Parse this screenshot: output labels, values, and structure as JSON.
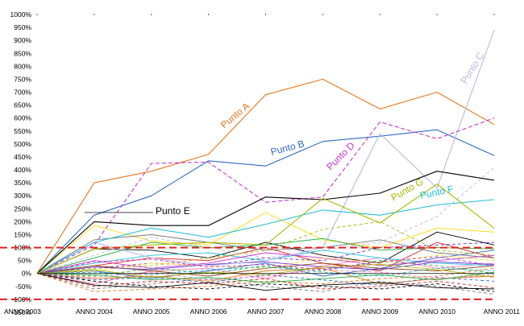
{
  "chart_data": {
    "type": "line",
    "title": "",
    "xlabel": "",
    "ylabel": "",
    "categories": [
      "ANNO 2003",
      "ANNO 2004",
      "ANNO 2005",
      "ANNO 2006",
      "ANNO 2007",
      "ANNO 2008",
      "ANNO 2009",
      "ANNO 2010",
      "ANNO 2011"
    ],
    "ylim": [
      -150,
      1000
    ],
    "yticks": [
      -150,
      -100,
      -50,
      0,
      50,
      100,
      150,
      200,
      250,
      300,
      350,
      400,
      450,
      500,
      550,
      600,
      650,
      700,
      750,
      800,
      850,
      900,
      950,
      1000
    ],
    "ytick_labels": [
      "-150%",
      "-100%",
      "-50%",
      "0%",
      "50%",
      "100%",
      "150%",
      "200%",
      "250%",
      "300%",
      "350%",
      "400%",
      "450%",
      "500%",
      "550%",
      "600%",
      "650%",
      "700%",
      "750%",
      "800%",
      "850%",
      "900%",
      "950%",
      "1000%"
    ],
    "reference_lines": [
      {
        "y": 100,
        "color": "#e32020",
        "dash": true
      },
      {
        "y": -100,
        "color": "#e32020",
        "dash": true
      }
    ],
    "highlighted_series": [
      {
        "label": "Punto A",
        "color": "#e8761a",
        "dashed": false,
        "values": [
          0,
          350,
          395,
          460,
          690,
          750,
          635,
          700,
          575
        ]
      },
      {
        "label": "Punto B",
        "color": "#2f6bc4",
        "dashed": false,
        "values": [
          0,
          225,
          300,
          435,
          415,
          510,
          530,
          555,
          455
        ]
      },
      {
        "label": "Punto C",
        "color": "#b8b8e8",
        "dashed": false,
        "values": [
          0,
          120,
          60,
          30,
          50,
          100,
          540,
          330,
          940
        ]
      },
      {
        "label": "Punto D",
        "color": "#cc33cc",
        "dashed": true,
        "values": [
          0,
          110,
          425,
          430,
          275,
          295,
          585,
          520,
          600
        ]
      },
      {
        "label": "Punto E",
        "color": "#000000",
        "dashed": false,
        "values": [
          0,
          200,
          185,
          185,
          295,
          285,
          310,
          395,
          360
        ]
      },
      {
        "label": "Punto F",
        "color": "#22c0d8",
        "dashed": false,
        "values": [
          0,
          120,
          175,
          140,
          190,
          245,
          225,
          265,
          285
        ]
      },
      {
        "label": "Punto G",
        "color": "#a8b800",
        "dashed": false,
        "values": [
          0,
          95,
          110,
          120,
          110,
          290,
          195,
          345,
          175
        ]
      }
    ],
    "background_series": [
      {
        "color": "#ffd800",
        "dashed": false,
        "values": [
          0,
          185,
          125,
          110,
          235,
          130,
          100,
          175,
          160
        ]
      },
      {
        "color": "#000000",
        "dashed": false,
        "values": [
          0,
          95,
          90,
          60,
          120,
          70,
          40,
          160,
          110
        ]
      },
      {
        "color": "#22aa44",
        "dashed": false,
        "values": [
          0,
          60,
          120,
          100,
          110,
          135,
          90,
          100,
          95
        ]
      },
      {
        "color": "#e32020",
        "dashed": false,
        "values": [
          0,
          30,
          60,
          50,
          100,
          40,
          10,
          120,
          60
        ]
      },
      {
        "color": "#6633cc",
        "dashed": true,
        "values": [
          0,
          20,
          40,
          30,
          60,
          50,
          100,
          110,
          120
        ]
      },
      {
        "color": "#ff7ab8",
        "dashed": false,
        "values": [
          0,
          -40,
          10,
          20,
          -20,
          30,
          60,
          20,
          40
        ]
      },
      {
        "color": "#b8b8e8",
        "dashed": true,
        "values": [
          0,
          70,
          140,
          100,
          60,
          90,
          120,
          220,
          410
        ]
      },
      {
        "color": "#777777",
        "dashed": true,
        "values": [
          0,
          -60,
          -40,
          -20,
          -50,
          -70,
          -30,
          -50,
          -80
        ]
      },
      {
        "color": "#22c0d8",
        "dashed": false,
        "values": [
          0,
          40,
          70,
          80,
          50,
          90,
          60,
          40,
          30
        ]
      },
      {
        "color": "#2f6bc4",
        "dashed": false,
        "values": [
          0,
          10,
          -20,
          10,
          40,
          -10,
          20,
          60,
          90
        ]
      },
      {
        "color": "#a8b800",
        "dashed": true,
        "values": [
          0,
          20,
          30,
          60,
          90,
          170,
          200,
          90,
          70
        ]
      },
      {
        "color": "#e8761a",
        "dashed": false,
        "values": [
          0,
          -20,
          -10,
          -30,
          10,
          20,
          -40,
          -20,
          -10
        ]
      },
      {
        "color": "#000000",
        "dashed": true,
        "values": [
          0,
          -30,
          -50,
          -60,
          -40,
          -50,
          -60,
          -40,
          -70
        ]
      },
      {
        "color": "#cc33cc",
        "dashed": false,
        "values": [
          0,
          50,
          20,
          40,
          80,
          60,
          30,
          50,
          70
        ]
      },
      {
        "color": "#22aa44",
        "dashed": true,
        "values": [
          0,
          -10,
          20,
          0,
          30,
          10,
          50,
          30,
          0
        ]
      },
      {
        "color": "#8b4513",
        "dashed": false,
        "values": [
          0,
          30,
          10,
          -10,
          20,
          40,
          20,
          10,
          30
        ]
      },
      {
        "color": "#e32020",
        "dashed": true,
        "values": [
          0,
          -50,
          -30,
          -40,
          -20,
          -60,
          -50,
          -30,
          -55
        ]
      },
      {
        "color": "#ffd800",
        "dashed": true,
        "values": [
          0,
          10,
          40,
          30,
          20,
          60,
          40,
          70,
          50
        ]
      },
      {
        "color": "#2f6bc4",
        "dashed": true,
        "values": [
          0,
          -25,
          -15,
          -35,
          -5,
          -25,
          -45,
          -15,
          -30
        ]
      },
      {
        "color": "#22c0d8",
        "dashed": true,
        "values": [
          0,
          5,
          -5,
          15,
          25,
          5,
          -10,
          20,
          10
        ]
      },
      {
        "color": "#777777",
        "dashed": false,
        "values": [
          0,
          130,
          150,
          120,
          90,
          100,
          130,
          80,
          60
        ]
      },
      {
        "color": "#ff7ab8",
        "dashed": true,
        "values": [
          0,
          -15,
          5,
          -25,
          -10,
          15,
          5,
          -20,
          -5
        ]
      },
      {
        "color": "#6633cc",
        "dashed": false,
        "values": [
          0,
          25,
          15,
          35,
          45,
          25,
          15,
          45,
          35
        ]
      },
      {
        "color": "#000000",
        "dashed": false,
        "values": [
          0,
          -45,
          -55,
          -35,
          -65,
          -45,
          -35,
          -55,
          -60
        ]
      },
      {
        "color": "#a8b800",
        "dashed": false,
        "values": [
          0,
          15,
          -15,
          5,
          -5,
          25,
          35,
          15,
          -15
        ]
      },
      {
        "color": "#e8761a",
        "dashed": true,
        "values": [
          0,
          -70,
          -60,
          -50,
          -30,
          -40,
          -20,
          -10,
          20
        ]
      },
      {
        "color": "#22aa44",
        "dashed": false,
        "values": [
          0,
          -5,
          -25,
          -15,
          -35,
          -20,
          -5,
          -25,
          5
        ]
      },
      {
        "color": "#cc33cc",
        "dashed": true,
        "values": [
          0,
          45,
          55,
          25,
          35,
          15,
          45,
          65,
          30
        ]
      }
    ]
  }
}
